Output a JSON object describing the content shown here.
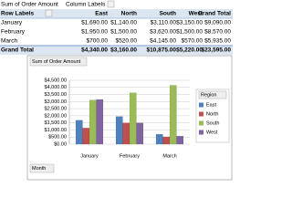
{
  "table": {
    "corner": "Sum of Order Amount",
    "column_labels": "Column Labels",
    "row_labels": "Row Labels",
    "columns": [
      "East",
      "North",
      "South",
      "West",
      "Grand Total"
    ],
    "rows": [
      [
        "January",
        "$1,690.00",
        "$1,140.00",
        "$3,110.00",
        "$3,150.00",
        "$9,090.00"
      ],
      [
        "February",
        "$1,950.00",
        "$1,500.00",
        "$3,620.00",
        "$1,500.00",
        "$8,570.00"
      ],
      [
        "March",
        "$700.00",
        "$520.00",
        "$4,145.00",
        "$570.00",
        "$5,935.00"
      ],
      [
        "Grand Total",
        "$4,340.00",
        "$3,160.00",
        "$10,875.00",
        "$5,220.00",
        "$23,595.00"
      ]
    ]
  },
  "chart_data": {
    "type": "bar",
    "title": "Sum of Order Amount",
    "x_field": "Month",
    "legend_title": "Region",
    "legend": "right",
    "grid": true,
    "categories": [
      "January",
      "February",
      "March"
    ],
    "series": [
      {
        "name": "East",
        "color": "#4f81bd",
        "values": [
          1690,
          1950,
          700
        ]
      },
      {
        "name": "North",
        "color": "#c0504d",
        "values": [
          1140,
          1500,
          520
        ]
      },
      {
        "name": "South",
        "color": "#9bbb59",
        "values": [
          3110,
          3620,
          4145
        ]
      },
      {
        "name": "West",
        "color": "#8064a2",
        "values": [
          3150,
          1500,
          570
        ]
      }
    ],
    "ylim": [
      0,
      4500
    ],
    "yticks": [
      {
        "value": 0,
        "label": "$0.00"
      },
      {
        "value": 500,
        "label": "$500.00"
      },
      {
        "value": 1000,
        "label": "$1,000.00"
      },
      {
        "value": 1500,
        "label": "$1,500.00"
      },
      {
        "value": 2000,
        "label": "$2,000.00"
      },
      {
        "value": 2500,
        "label": "$2,500.00"
      },
      {
        "value": 3000,
        "label": "$3,000.00"
      },
      {
        "value": 3500,
        "label": "$3,500.00"
      },
      {
        "value": 4000,
        "label": "$4,000.00"
      },
      {
        "value": 4500,
        "label": "$4,500.00"
      }
    ]
  }
}
